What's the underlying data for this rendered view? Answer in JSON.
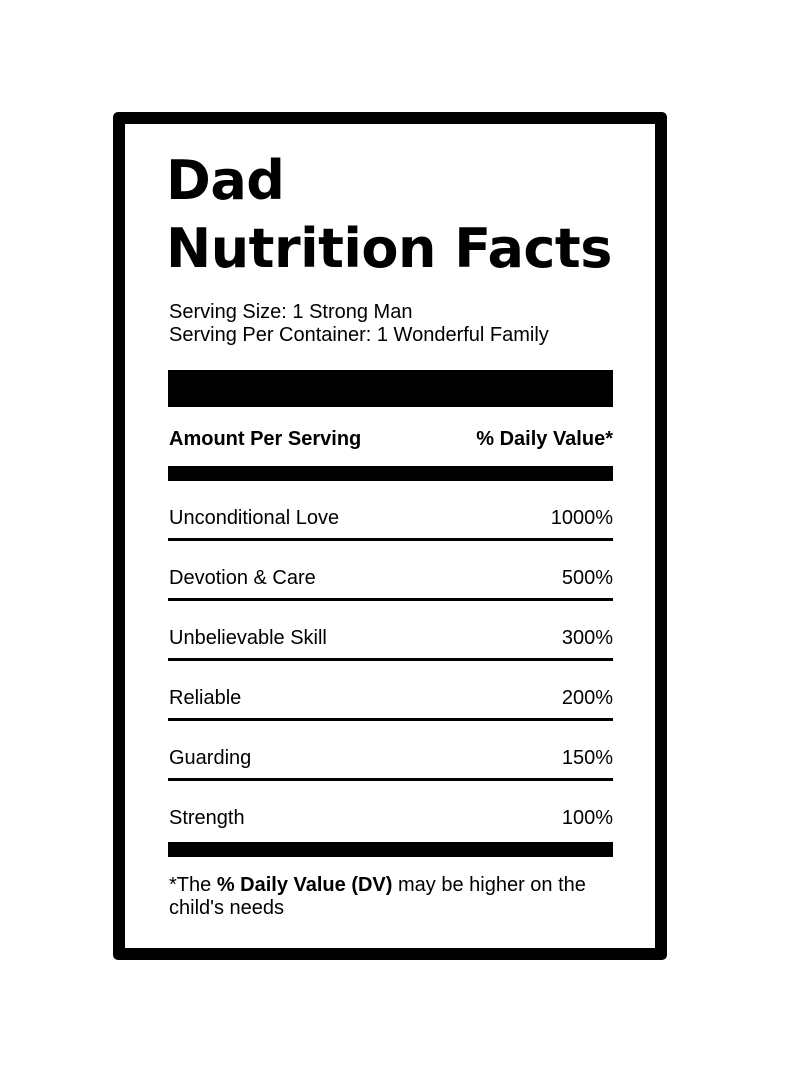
{
  "title": {
    "line1": "Dad",
    "line2": "Nutrition Facts"
  },
  "serving": {
    "size": "Serving Size: 1 Strong Man",
    "per_container": "Serving Per Container: 1 Wonderful Family"
  },
  "header": {
    "amount": "Amount Per Serving",
    "daily_value": "% Daily Value*"
  },
  "nutrients": [
    {
      "name": "Unconditional Love",
      "value": "1000%"
    },
    {
      "name": "Devotion & Care",
      "value": "500%"
    },
    {
      "name": "Unbelievable Skill",
      "value": "300%"
    },
    {
      "name": "Reliable",
      "value": "200%"
    },
    {
      "name": "Guarding",
      "value": "150%"
    },
    {
      "name": "Strength",
      "value": "100%"
    }
  ],
  "footnote": {
    "prefix": "*The ",
    "emphasis": "% Daily Value (DV)",
    "suffix": " may be higher on the child's needs"
  },
  "colors": {
    "ink": "#000000",
    "background": "#ffffff"
  }
}
